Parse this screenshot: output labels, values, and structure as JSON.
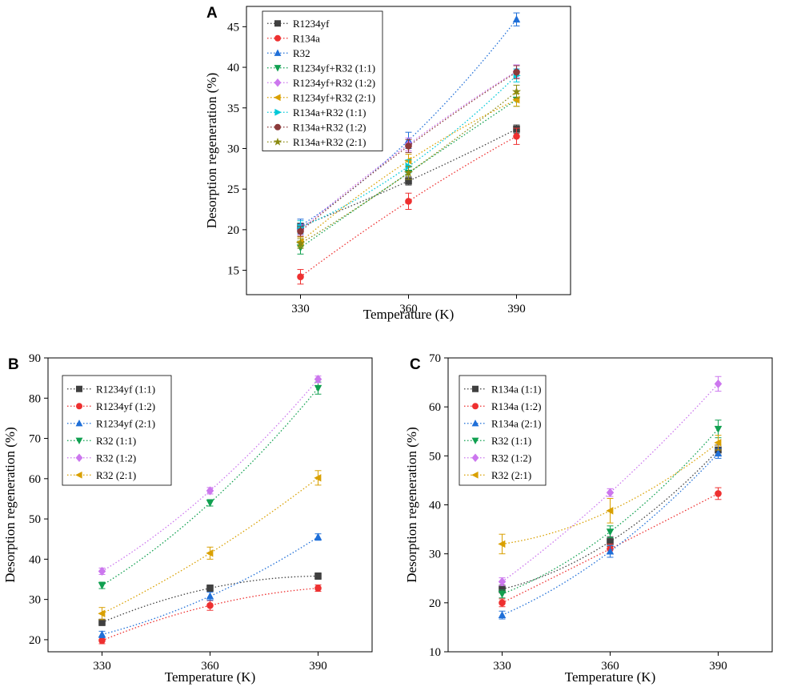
{
  "chart_data": [
    {
      "panel": "A",
      "type": "line",
      "xlabel": "Temperature (K)",
      "ylabel": "Desorption regeneration (%)",
      "x": [
        330,
        360,
        390
      ],
      "x_ticks": [
        "330",
        "360",
        "390"
      ],
      "ylim": [
        12,
        47.5
      ],
      "y_ticks": [
        15,
        20,
        25,
        30,
        35,
        40,
        45
      ],
      "legend_position": "top-center",
      "series": [
        {
          "name": "R1234yf",
          "marker": "square",
          "color": "#404040",
          "values": [
            20.4,
            26.0,
            32.4
          ],
          "errors": [
            0.4,
            0.5,
            0.5
          ]
        },
        {
          "name": "R134a",
          "marker": "circle",
          "color": "#ee3030",
          "values": [
            14.2,
            23.5,
            31.5
          ],
          "errors": [
            0.9,
            1.0,
            1.0
          ]
        },
        {
          "name": "R32",
          "marker": "triangle-up",
          "color": "#1f6fd8",
          "values": [
            20.5,
            31.0,
            45.9
          ],
          "errors": [
            0.8,
            1.0,
            0.8
          ]
        },
        {
          "name": "R1234yf+R32 (1:1)",
          "marker": "triangle-down",
          "color": "#10a050",
          "values": [
            17.8,
            27.0,
            36.0
          ],
          "errors": [
            0.8,
            0.8,
            0.8
          ]
        },
        {
          "name": "R1234yf+R32 (1:2)",
          "marker": "diamond",
          "color": "#cc77ee",
          "values": [
            20.0,
            30.5,
            39.5
          ],
          "errors": [
            0.6,
            0.8,
            0.8
          ]
        },
        {
          "name": "R1234yf+R32 (2:1)",
          "marker": "triangle-left",
          "color": "#d9a000",
          "values": [
            18.5,
            28.5,
            36.0
          ],
          "errors": [
            0.6,
            0.8,
            0.8
          ]
        },
        {
          "name": "R134a+R32 (1:1)",
          "marker": "triangle-right",
          "color": "#00c8d8",
          "values": [
            20.3,
            27.8,
            39.0
          ],
          "errors": [
            0.8,
            0.8,
            0.8
          ]
        },
        {
          "name": "R134a+R32 (1:2)",
          "marker": "circle",
          "color": "#8b3a3a",
          "values": [
            19.8,
            30.3,
            39.4
          ],
          "errors": [
            0.6,
            0.8,
            0.8
          ]
        },
        {
          "name": "R134a+R32 (2:1)",
          "marker": "star",
          "color": "#8a8a10",
          "values": [
            18.3,
            27.0,
            37.0
          ],
          "errors": [
            0.6,
            0.8,
            0.8
          ]
        }
      ]
    },
    {
      "panel": "B",
      "type": "line",
      "xlabel": "Temperature (K)",
      "ylabel": "Desorption regeneration (%)",
      "x": [
        330,
        360,
        390
      ],
      "x_ticks": [
        "330",
        "360",
        "390"
      ],
      "ylim": [
        17,
        90
      ],
      "y_ticks": [
        20,
        30,
        40,
        50,
        60,
        70,
        80,
        90
      ],
      "legend_position": "top-left",
      "series": [
        {
          "name": "R1234yf (1:1)",
          "marker": "square",
          "color": "#404040",
          "values": [
            24.3,
            32.8,
            35.8
          ],
          "errors": [
            0.8,
            0.8,
            0.8
          ]
        },
        {
          "name": "R1234yf (1:2)",
          "marker": "circle",
          "color": "#ee3030",
          "values": [
            19.8,
            28.5,
            32.8
          ],
          "errors": [
            0.8,
            1.2,
            0.8
          ]
        },
        {
          "name": "R1234yf (2:1)",
          "marker": "triangle-up",
          "color": "#1f6fd8",
          "values": [
            21.3,
            30.8,
            45.5
          ],
          "errors": [
            0.8,
            1.0,
            0.8
          ]
        },
        {
          "name": "R32 (1:1)",
          "marker": "triangle-down",
          "color": "#10a050",
          "values": [
            33.5,
            54.0,
            82.5
          ],
          "errors": [
            0.8,
            0.8,
            1.5
          ]
        },
        {
          "name": "R32 (1:2)",
          "marker": "diamond",
          "color": "#cc77ee",
          "values": [
            37.0,
            57.0,
            84.7
          ],
          "errors": [
            0.8,
            0.8,
            0.8
          ]
        },
        {
          "name": "R32 (2:1)",
          "marker": "triangle-left",
          "color": "#d9a000",
          "values": [
            26.5,
            41.5,
            60.2
          ],
          "errors": [
            1.5,
            1.5,
            1.8
          ]
        }
      ]
    },
    {
      "panel": "C",
      "type": "line",
      "xlabel": "Temperature (K)",
      "ylabel": "Desorption regeneration (%)",
      "x": [
        330,
        360,
        390
      ],
      "x_ticks": [
        "330",
        "360",
        "390"
      ],
      "ylim": [
        10,
        70
      ],
      "y_ticks": [
        10,
        20,
        30,
        40,
        50,
        60,
        70
      ],
      "legend_position": "top-left",
      "series": [
        {
          "name": "R134a (1:1)",
          "marker": "square",
          "color": "#404040",
          "values": [
            22.8,
            32.5,
            51.2
          ],
          "errors": [
            0.8,
            1.0,
            1.0
          ]
        },
        {
          "name": "R134a (1:2)",
          "marker": "circle",
          "color": "#ee3030",
          "values": [
            20.0,
            31.0,
            42.3
          ],
          "errors": [
            0.8,
            1.0,
            1.2
          ]
        },
        {
          "name": "R134a (2:1)",
          "marker": "triangle-up",
          "color": "#1f6fd8",
          "values": [
            17.5,
            30.5,
            50.5
          ],
          "errors": [
            0.8,
            1.2,
            1.0
          ]
        },
        {
          "name": "R32 (1:1)",
          "marker": "triangle-down",
          "color": "#10a050",
          "values": [
            21.8,
            34.5,
            55.5
          ],
          "errors": [
            0.8,
            1.2,
            1.8
          ]
        },
        {
          "name": "R32 (1:2)",
          "marker": "diamond",
          "color": "#cc77ee",
          "values": [
            24.3,
            42.5,
            64.7
          ],
          "errors": [
            0.8,
            0.8,
            1.5
          ]
        },
        {
          "name": "R32 (2:1)",
          "marker": "triangle-left",
          "color": "#d9a000",
          "values": [
            32.0,
            38.8,
            52.7
          ],
          "errors": [
            2.0,
            2.5,
            1.5
          ]
        }
      ]
    }
  ]
}
